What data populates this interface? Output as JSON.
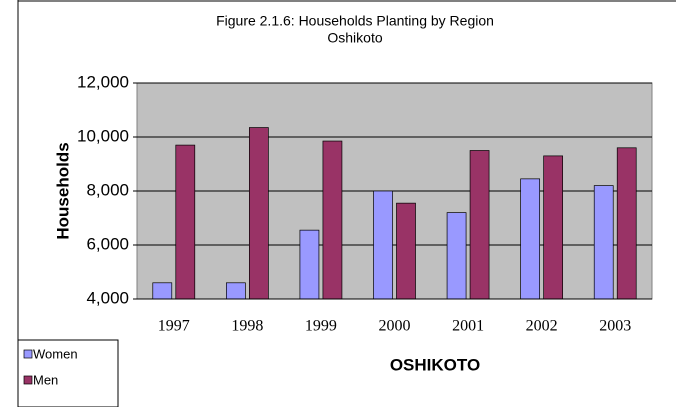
{
  "chart_data": {
    "type": "bar",
    "title": "Figure 2.1.6: Households Planting by Region",
    "subtitle": "Oshikoto",
    "ylabel": "Households",
    "xlabel": "OSHIKOTO",
    "categories": [
      "1997",
      "1998",
      "1999",
      "2000",
      "2001",
      "2002",
      "2003"
    ],
    "series": [
      {
        "name": "Women",
        "color": "#9999ff",
        "values": [
          4600,
          4600,
          6550,
          8000,
          7200,
          8450,
          8200
        ]
      },
      {
        "name": "Men",
        "color": "#993366",
        "values": [
          9700,
          10350,
          9850,
          7550,
          9500,
          9300,
          9600
        ]
      }
    ],
    "ylim": [
      4000,
      12000
    ],
    "yticks": [
      {
        "value": 4000,
        "label": "4,000"
      },
      {
        "value": 6000,
        "label": "6,000"
      },
      {
        "value": 8000,
        "label": "8,000"
      },
      {
        "value": 10000,
        "label": "10,000"
      },
      {
        "value": 12000,
        "label": "12,000"
      }
    ],
    "grid": true,
    "legend": "bottom-left"
  }
}
